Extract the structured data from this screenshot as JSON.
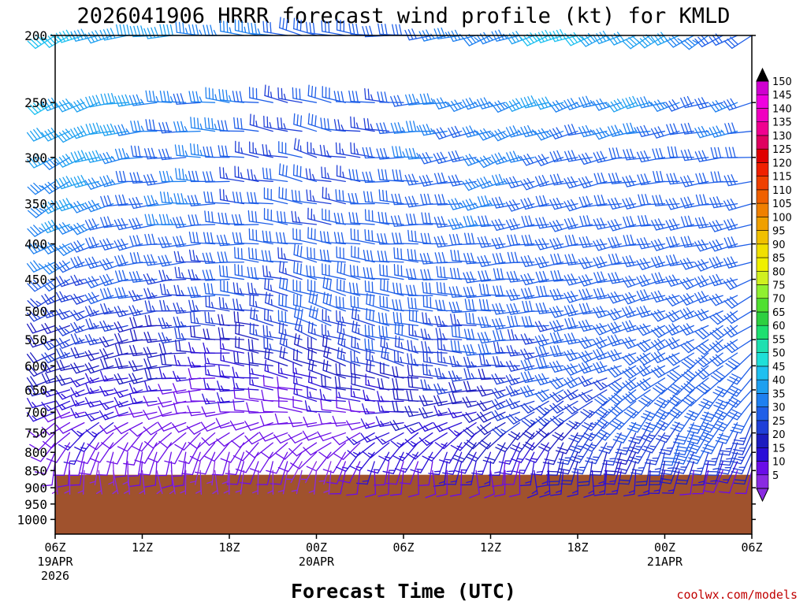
{
  "title": "2026041906 HRRR forecast wind profile (kt) for KMLD",
  "credit": "coolwx.com/models",
  "chart_data": {
    "type": "wind-barb-time-height",
    "title": "2026041906 HRRR forecast wind profile (kt) for KMLD",
    "xlabel": "Forecast Time (UTC)",
    "x_range_hours": [
      0,
      48
    ],
    "x_ticks": [
      {
        "hour": 0,
        "label": "06Z",
        "date": "19APR",
        "year": "2026"
      },
      {
        "hour": 6,
        "label": "12Z"
      },
      {
        "hour": 12,
        "label": "18Z"
      },
      {
        "hour": 18,
        "label": "00Z",
        "date": "20APR"
      },
      {
        "hour": 24,
        "label": "06Z"
      },
      {
        "hour": 30,
        "label": "12Z"
      },
      {
        "hour": 36,
        "label": "18Z"
      },
      {
        "hour": 42,
        "label": "00Z",
        "date": "21APR"
      },
      {
        "hour": 48,
        "label": "06Z"
      }
    ],
    "yaxis": "pressure (hPa), log scale, inverted",
    "y_range_hpa": [
      200,
      1050
    ],
    "y_ticks": [
      200,
      250,
      300,
      350,
      400,
      450,
      500,
      550,
      600,
      650,
      700,
      750,
      800,
      850,
      900,
      950,
      1000
    ],
    "surface_pressure_hpa": 862,
    "ground_color": "#a0522d",
    "barb_levels_hpa": [
      200,
      250,
      275,
      300,
      325,
      350,
      375,
      400,
      425,
      450,
      475,
      500,
      525,
      550,
      575,
      600,
      625,
      650,
      675,
      700,
      725,
      750,
      775,
      800,
      825,
      850
    ],
    "barb_hours": [
      0,
      1,
      2,
      3,
      4,
      5,
      6,
      7,
      8,
      9,
      10,
      11,
      12,
      13,
      14,
      15,
      16,
      17,
      18,
      19,
      20,
      21,
      22,
      23,
      24,
      25,
      26,
      27,
      28,
      29,
      30,
      31,
      32,
      33,
      34,
      35,
      36,
      37,
      38,
      39,
      40,
      41,
      42,
      43,
      44,
      45,
      46,
      47,
      48
    ],
    "wind_profile_anchors": [
      {
        "hpa": 200,
        "dir_deg": [
          240,
          265,
          275,
          285,
          270,
          250,
          250,
          240,
          240
        ],
        "speed_kt": [
          45,
          40,
          35,
          30,
          30,
          35,
          45,
          40,
          30
        ]
      },
      {
        "hpa": 300,
        "dir_deg": [
          240,
          265,
          275,
          285,
          270,
          250,
          255,
          265,
          265
        ],
        "speed_kt": [
          40,
          35,
          30,
          25,
          30,
          35,
          30,
          30,
          30
        ]
      },
      {
        "hpa": 400,
        "dir_deg": [
          240,
          260,
          270,
          280,
          275,
          265,
          260,
          260,
          255
        ],
        "speed_kt": [
          35,
          30,
          30,
          30,
          30,
          30,
          30,
          30,
          30
        ]
      },
      {
        "hpa": 500,
        "dir_deg": [
          245,
          260,
          275,
          290,
          280,
          270,
          260,
          250,
          240
        ],
        "speed_kt": [
          25,
          25,
          25,
          30,
          30,
          30,
          30,
          30,
          30
        ]
      },
      {
        "hpa": 600,
        "dir_deg": [
          250,
          260,
          275,
          290,
          285,
          270,
          255,
          240,
          225
        ],
        "speed_kt": [
          20,
          20,
          15,
          20,
          25,
          25,
          30,
          30,
          30
        ]
      },
      {
        "hpa": 700,
        "dir_deg": [
          250,
          255,
          265,
          280,
          270,
          250,
          230,
          215,
          210
        ],
        "speed_kt": [
          15,
          10,
          10,
          10,
          15,
          20,
          25,
          30,
          30
        ]
      },
      {
        "hpa": 800,
        "dir_deg": [
          200,
          190,
          200,
          220,
          210,
          200,
          200,
          200,
          200
        ],
        "speed_kt": [
          10,
          10,
          10,
          10,
          15,
          15,
          20,
          25,
          25
        ]
      },
      {
        "hpa": 850,
        "dir_deg": [
          180,
          170,
          180,
          190,
          180,
          175,
          180,
          190,
          200
        ],
        "speed_kt": [
          5,
          5,
          5,
          5,
          10,
          10,
          15,
          15,
          10
        ]
      }
    ],
    "colorbar_kt": [
      5,
      10,
      15,
      20,
      25,
      30,
      35,
      40,
      45,
      50,
      55,
      60,
      65,
      70,
      75,
      80,
      85,
      90,
      95,
      100,
      105,
      110,
      115,
      120,
      125,
      130,
      135,
      140,
      145,
      150
    ],
    "colorbar_colors": [
      "#8a2be2",
      "#6a0de8",
      "#2a0ed8",
      "#1c1cc0",
      "#1f3fd8",
      "#1f5fe8",
      "#1e80f0",
      "#1ea0f0",
      "#1ec0f0",
      "#1ee0d8",
      "#1ee0b0",
      "#1ee070",
      "#2ed040",
      "#50e030",
      "#90f030",
      "#d0f020",
      "#f0f000",
      "#f0e000",
      "#f0c000",
      "#f0a000",
      "#f08000",
      "#f06000",
      "#f04000",
      "#f02000",
      "#e00000",
      "#e00060",
      "#f00090",
      "#f000c0",
      "#f000e0",
      "#d000d0"
    ]
  }
}
